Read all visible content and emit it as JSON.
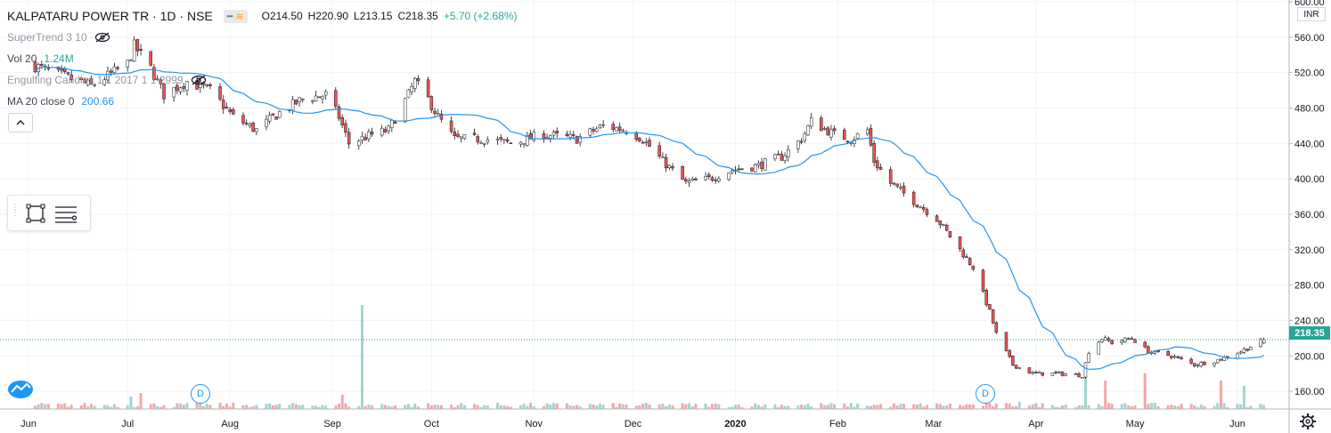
{
  "symbol": {
    "name": "KALPATARU POWER TR",
    "interval": "1D",
    "exchange": "NSE",
    "title": "KALPATARU POWER TR · 1D · NSE"
  },
  "ohlc": {
    "open": "O214.50",
    "high": "H220.90",
    "low": "L213.15",
    "close": "C218.35",
    "change": "+5.70 (+2.68%)"
  },
  "indicators": [
    {
      "label": "SuperTrend 3 10",
      "value": ""
    },
    {
      "label": "Vol 20",
      "value": "1.24M"
    },
    {
      "label": "Engulfing Candles 1 1 2017 1 1 2999",
      "value": ""
    },
    {
      "label": "MA 20 close 0",
      "value": "200.66"
    }
  ],
  "currency": "INR",
  "last_price_label": "218.35",
  "dividend_marker": "D",
  "colors": {
    "up": "#26a69a",
    "down": "#ef5350",
    "ma": "#2196f3",
    "vol_up": "#9fd6cf",
    "vol_down": "#f4a7a5"
  },
  "chart_data": {
    "type": "candlestick",
    "y_axis": {
      "ticks": [
        "160.00",
        "200.00",
        "240.00",
        "280.00",
        "320.00",
        "360.00",
        "400.00",
        "440.00",
        "480.00",
        "520.00",
        "560.00",
        "600.00"
      ],
      "min": 140,
      "max": 600
    },
    "x_axis": {
      "labels": [
        "Jun",
        "Jul",
        "Aug",
        "Sep",
        "Oct",
        "Nov",
        "Dec",
        "2020",
        "Feb",
        "Mar",
        "Apr",
        "May",
        "Jun"
      ]
    },
    "price_path": [
      [
        "2019-06-01",
        530
      ],
      [
        "2019-06-20",
        505
      ],
      [
        "2019-07-01",
        530
      ],
      [
        "2019-07-03",
        550
      ],
      [
        "2019-07-08",
        525
      ],
      [
        "2019-07-12",
        495
      ],
      [
        "2019-07-19",
        510
      ],
      [
        "2019-07-26",
        500
      ],
      [
        "2019-08-02",
        470
      ],
      [
        "2019-08-09",
        455
      ],
      [
        "2019-08-16",
        475
      ],
      [
        "2019-08-23",
        490
      ],
      [
        "2019-08-30",
        495
      ],
      [
        "2019-09-03",
        470
      ],
      [
        "2019-09-06",
        440
      ],
      [
        "2019-09-13",
        450
      ],
      [
        "2019-09-18",
        455
      ],
      [
        "2019-09-24",
        495
      ],
      [
        "2019-09-26",
        510
      ],
      [
        "2019-09-30",
        490
      ],
      [
        "2019-10-03",
        470
      ],
      [
        "2019-10-08",
        445
      ],
      [
        "2019-10-17",
        445
      ],
      [
        "2019-10-25",
        440
      ],
      [
        "2019-11-04",
        450
      ],
      [
        "2019-11-14",
        445
      ],
      [
        "2019-11-22",
        460
      ],
      [
        "2019-11-29",
        455
      ],
      [
        "2019-12-04",
        445
      ],
      [
        "2019-12-10",
        420
      ],
      [
        "2019-12-17",
        395
      ],
      [
        "2019-12-24",
        400
      ],
      [
        "2019-12-31",
        410
      ],
      [
        "2020-01-08",
        415
      ],
      [
        "2020-01-15",
        425
      ],
      [
        "2020-01-21",
        445
      ],
      [
        "2020-01-24",
        465
      ],
      [
        "2020-01-31",
        450
      ],
      [
        "2020-02-05",
        445
      ],
      [
        "2020-02-10",
        455
      ],
      [
        "2020-02-12",
        420
      ],
      [
        "2020-02-17",
        395
      ],
      [
        "2020-02-24",
        375
      ],
      [
        "2020-03-02",
        355
      ],
      [
        "2020-03-06",
        335
      ],
      [
        "2020-03-13",
        300
      ],
      [
        "2020-03-18",
        250
      ],
      [
        "2020-03-20",
        225
      ],
      [
        "2020-03-25",
        190
      ],
      [
        "2020-03-31",
        180
      ],
      [
        "2020-04-08",
        180
      ],
      [
        "2020-04-15",
        178
      ],
      [
        "2020-04-17",
        205
      ],
      [
        "2020-04-21",
        220
      ],
      [
        "2020-04-24",
        215
      ],
      [
        "2020-04-30",
        220
      ],
      [
        "2020-05-05",
        205
      ],
      [
        "2020-05-12",
        200
      ],
      [
        "2020-05-19",
        190
      ],
      [
        "2020-05-26",
        195
      ],
      [
        "2020-06-02",
        205
      ],
      [
        "2020-06-09",
        218
      ]
    ],
    "volume_spikes": [
      [
        "2019-07-02",
        "up",
        14
      ],
      [
        "2019-07-05",
        "down",
        18
      ],
      [
        "2019-09-04",
        "down",
        16
      ],
      [
        "2019-09-10",
        "up",
        117
      ],
      [
        "2020-03-27",
        "up",
        8
      ],
      [
        "2020-04-16",
        "up",
        37
      ],
      [
        "2020-04-22",
        "down",
        32
      ],
      [
        "2020-05-04",
        "down",
        40
      ],
      [
        "2020-05-27",
        "down",
        32
      ],
      [
        "2020-06-03",
        "up",
        26
      ]
    ],
    "ma_label": "MA 20 close 0",
    "last_close": 218.35,
    "ma_last": 200.66,
    "last_volume": "1.24M"
  }
}
